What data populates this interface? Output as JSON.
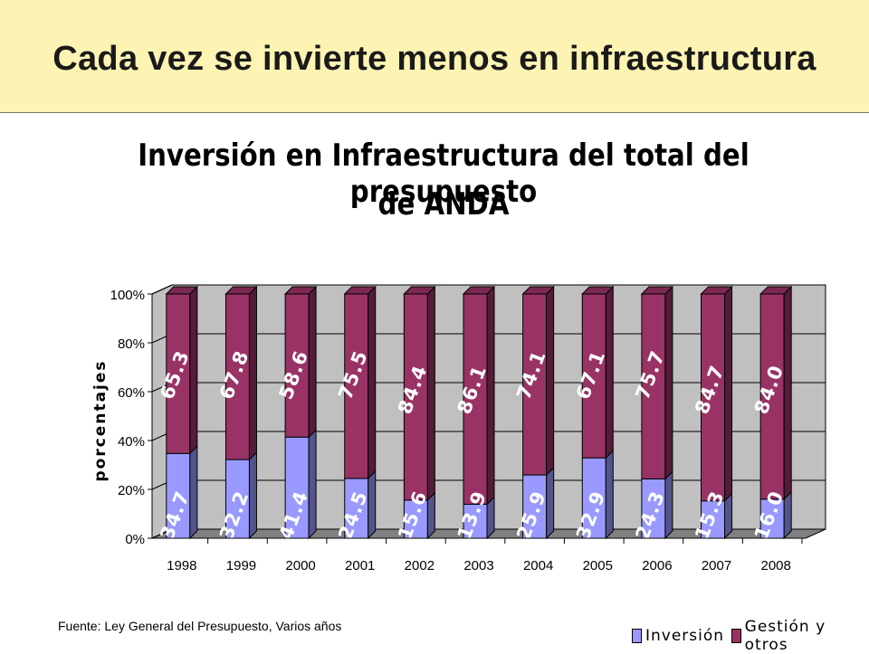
{
  "slide": {
    "title": "Cada vez se invierte menos en infraestructura"
  },
  "chart_data": {
    "type": "bar",
    "stacked": true,
    "three_d": true,
    "title_line1": "Inversión en Infraestructura del total del presupuesto",
    "title_line2": "de ANDA",
    "ylabel": "porcentajes",
    "xlabel": "",
    "categories": [
      "1998",
      "1999",
      "2000",
      "2001",
      "2002",
      "2003",
      "2004",
      "2005",
      "2006",
      "2007",
      "2008"
    ],
    "series": [
      {
        "name": "Inversión",
        "color": "#9999ff",
        "values": [
          34.7,
          32.2,
          41.4,
          24.5,
          15.6,
          13.9,
          25.9,
          32.9,
          24.3,
          15.3,
          16.0
        ],
        "labels": [
          "34.7",
          "32.2",
          "41.4",
          "24.5",
          "15.6",
          "13.9",
          "25.9",
          "32.9",
          "24.3",
          "15.3",
          "16.0"
        ]
      },
      {
        "name": "Gestión y otros",
        "color": "#993366",
        "values": [
          65.3,
          67.8,
          58.6,
          75.5,
          84.4,
          86.1,
          74.1,
          67.1,
          75.7,
          84.7,
          84.0
        ],
        "labels": [
          "65.3",
          "67.8",
          "58.6",
          "75.5",
          "84.4",
          "86.1",
          "74.1",
          "67.1",
          "75.7",
          "84.7",
          "84.0"
        ]
      }
    ],
    "ylim": [
      0,
      100
    ],
    "yticks": [
      "0%",
      "20%",
      "40%",
      "60%",
      "80%",
      "100%"
    ],
    "grid": true,
    "legend_position": "bottom-right",
    "wall_color": "#c0c0c0",
    "floor_color": "#808080"
  },
  "source_note": "Fuente: Ley General del Presupuesto, Varios años"
}
